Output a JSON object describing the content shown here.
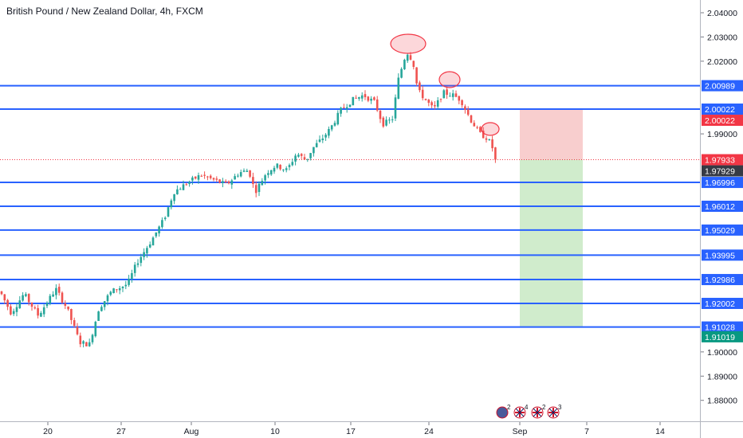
{
  "chart_data": {
    "type": "candlestick",
    "title": "British Pound / New Zealand Dollar, 4h, FXCM",
    "x_ticks": [
      "20",
      "27",
      "Aug",
      "10",
      "17",
      "24",
      "Sep",
      "7",
      "14"
    ],
    "y_ticks": [
      "2.04000",
      "2.03000",
      "2.02000",
      "1.99000",
      "1.90000",
      "1.89000",
      "1.88000"
    ],
    "ylim": [
      1.873,
      2.045
    ],
    "grid": false,
    "up_color": "#26a69a",
    "down_color": "#ef5350",
    "horizontal_levels": [
      {
        "value": 2.00989,
        "label": "2.00989"
      },
      {
        "value": 2.00022,
        "label": "2.00022"
      },
      {
        "value": 1.96996,
        "label": "1.96996"
      },
      {
        "value": 1.96012,
        "label": "1.96012"
      },
      {
        "value": 1.95029,
        "label": "1.95029"
      },
      {
        "value": 1.93995,
        "label": "1.93995"
      },
      {
        "value": 1.92986,
        "label": "1.92986"
      },
      {
        "value": 1.92002,
        "label": "1.92002"
      },
      {
        "value": 1.91028,
        "label": "1.91028"
      }
    ],
    "level_color": "#2962ff",
    "position": {
      "type": "short",
      "entry": 1.97933,
      "stop": 2.00022,
      "target": 1.91019
    },
    "price_badges": [
      {
        "value": 2.00022,
        "label": "2.00022",
        "color": "#f23645"
      },
      {
        "value": 1.97933,
        "label": "1.97933",
        "color": "#f23645"
      },
      {
        "value": 1.97929,
        "label": "1.97929",
        "color": "#363a45"
      },
      {
        "value": 1.91019,
        "label": "1.91019",
        "color": "#089981"
      }
    ],
    "highlights": [
      "top-circle",
      "right-shoulder-circle",
      "lower-high-circle"
    ],
    "events": [
      {
        "icon": "calendar-flag-icon",
        "count": "2"
      },
      {
        "icon": "uk-flag-icon",
        "count": "4"
      },
      {
        "icon": "uk-flag-icon",
        "count": "2"
      },
      {
        "icon": "uk-flag-icon",
        "count": "3"
      }
    ]
  }
}
